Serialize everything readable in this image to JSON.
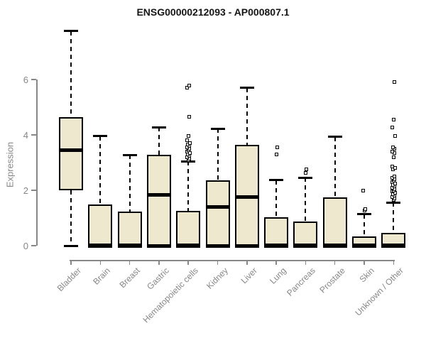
{
  "title": "ENSG00000212093 - AP000807.1",
  "y_axis": {
    "label": "Expression",
    "ticks": [
      0,
      2,
      4,
      6
    ]
  },
  "colors": {
    "box_fill": "#EDE8CE",
    "box_border": "#000000",
    "axis_gray": "#878787",
    "title_color": "#161616",
    "background": "#ffffff"
  },
  "chart_data": {
    "type": "boxplot",
    "title": "ENSG00000212093 - AP000807.1",
    "xlabel": "",
    "ylabel": "Expression",
    "ylim": [
      0,
      7.9
    ],
    "yticks": [
      0,
      2,
      4,
      6
    ],
    "grid": false,
    "legend": "none",
    "categories": [
      "Bladder",
      "Brain",
      "Breast",
      "Gastric",
      "Hematopoietic cells",
      "Kidney",
      "Liver",
      "Lung",
      "Pancreas",
      "Prostate",
      "Skin",
      "Unknown / Other"
    ],
    "boxes": [
      {
        "label": "Bladder",
        "min": 0,
        "q1": 2.0,
        "median": 3.45,
        "q3": 4.65,
        "max": 7.75,
        "outliers": []
      },
      {
        "label": "Brain",
        "min": 0,
        "q1": 0,
        "median": 0.02,
        "q3": 1.5,
        "max": 3.95,
        "outliers": []
      },
      {
        "label": "Breast",
        "min": 0,
        "q1": 0,
        "median": 0.02,
        "q3": 1.22,
        "max": 3.27,
        "outliers": []
      },
      {
        "label": "Gastric",
        "min": 0,
        "q1": 0,
        "median": 1.83,
        "q3": 3.27,
        "max": 4.27,
        "outliers": []
      },
      {
        "label": "Hematopoietic cells",
        "min": 0,
        "q1": 0,
        "median": 0.02,
        "q3": 1.25,
        "max": 3.05,
        "outliers": [
          3.1,
          3.15,
          3.2,
          3.25,
          3.3,
          3.35,
          3.4,
          3.45,
          3.5,
          3.55,
          3.6,
          3.65,
          3.7,
          3.8,
          3.95,
          4.65,
          5.7,
          5.78
        ]
      },
      {
        "label": "Kidney",
        "min": 0,
        "q1": 0,
        "median": 1.4,
        "q3": 2.36,
        "max": 4.23,
        "outliers": []
      },
      {
        "label": "Liver",
        "min": 0,
        "q1": 0,
        "median": 1.75,
        "q3": 3.65,
        "max": 5.7,
        "outliers": []
      },
      {
        "label": "Lung",
        "min": 0,
        "q1": 0,
        "median": 0.02,
        "q3": 1.03,
        "max": 2.37,
        "outliers": [
          3.3,
          3.55
        ]
      },
      {
        "label": "Pancreas",
        "min": 0,
        "q1": 0,
        "median": 0.02,
        "q3": 0.88,
        "max": 2.45,
        "outliers": [
          2.62,
          2.75
        ]
      },
      {
        "label": "Prostate",
        "min": 0,
        "q1": 0,
        "median": 0.02,
        "q3": 1.75,
        "max": 3.93,
        "outliers": []
      },
      {
        "label": "Skin",
        "min": 0,
        "q1": 0,
        "median": 0.02,
        "q3": 0.33,
        "max": 1.13,
        "outliers": [
          1.27,
          1.33,
          2.0
        ]
      },
      {
        "label": "Unknown / Other",
        "min": 0,
        "q1": 0,
        "median": 0.02,
        "q3": 0.47,
        "max": 1.56,
        "outliers": [
          1.65,
          1.7,
          1.75,
          1.8,
          1.85,
          1.9,
          1.95,
          2.0,
          2.05,
          2.1,
          2.15,
          2.2,
          2.25,
          2.3,
          2.35,
          2.4,
          2.45,
          2.5,
          2.75,
          2.8,
          2.85,
          3.2,
          3.35,
          3.4,
          3.5,
          3.55,
          3.95,
          4.28,
          4.56,
          5.9
        ]
      }
    ]
  }
}
